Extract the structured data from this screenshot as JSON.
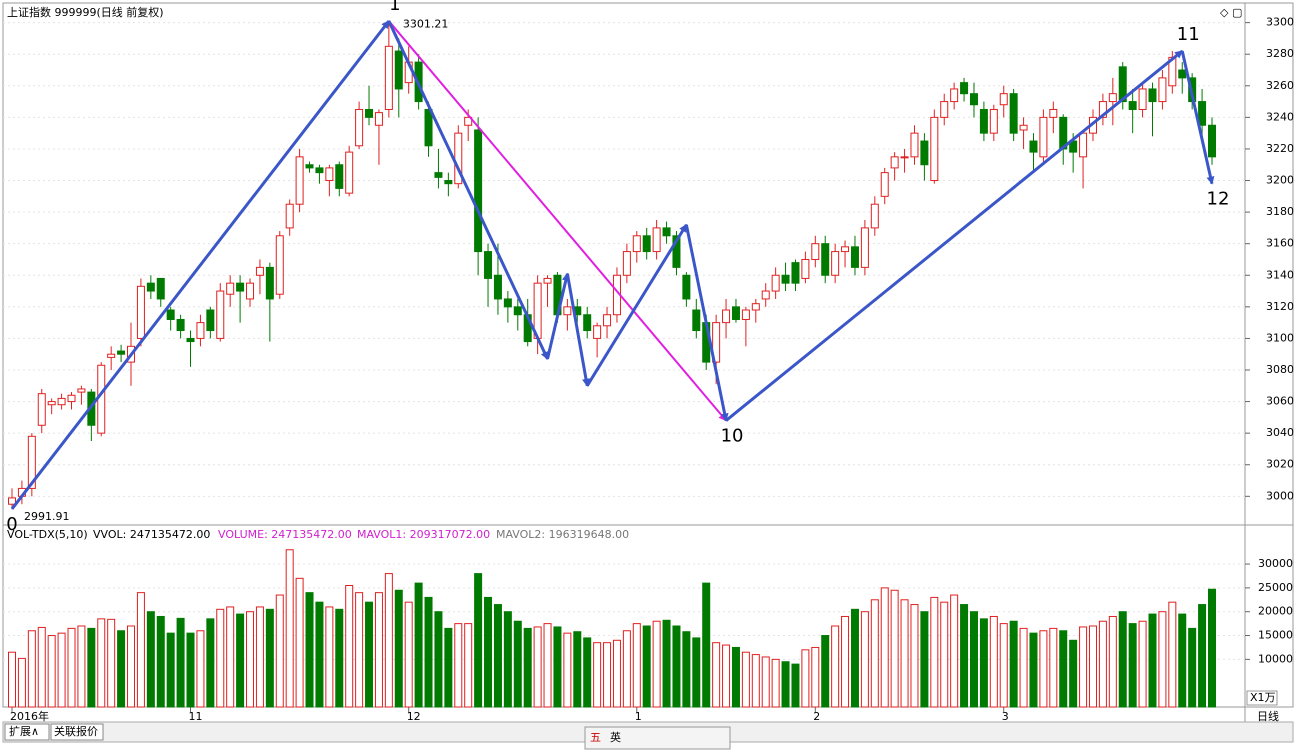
{
  "chart_data": {
    "type": "candlestick",
    "title": "上证指数 999999(日线 前复权)",
    "ylim": [
      2985,
      3308
    ],
    "yticks": [
      3000,
      3020,
      3040,
      3060,
      3080,
      3100,
      3120,
      3140,
      3160,
      3180,
      3200,
      3220,
      3240,
      3260,
      3280,
      3300
    ],
    "high_label": "3301.21",
    "low_label": "2991.91",
    "up_color": "#e02020",
    "down_color": "#007a00",
    "candles": [
      [
        2995,
        3005,
        2991.91,
        2999,
        11500
      ],
      [
        3000,
        3010,
        2995,
        3005,
        10200
      ],
      [
        3005,
        3040,
        3000,
        3038,
        16000
      ],
      [
        3045,
        3068,
        3040,
        3065,
        16700
      ],
      [
        3058,
        3062,
        3052,
        3060,
        15000
      ],
      [
        3058,
        3065,
        3055,
        3062,
        15500
      ],
      [
        3060,
        3066,
        3055,
        3064,
        16500
      ],
      [
        3066,
        3070,
        3058,
        3068,
        17000
      ],
      [
        3066,
        3068,
        3035,
        3045,
        16500
      ],
      [
        3040,
        3085,
        3038,
        3083,
        18500
      ],
      [
        3088,
        3095,
        3080,
        3090,
        18400
      ],
      [
        3092,
        3096,
        3085,
        3090,
        16000
      ],
      [
        3085,
        3110,
        3070,
        3095,
        17000
      ],
      [
        3100,
        3138,
        3095,
        3133,
        24000
      ],
      [
        3135,
        3140,
        3125,
        3130,
        20000
      ],
      [
        3138,
        3138,
        3120,
        3125,
        19000
      ],
      [
        3118,
        3120,
        3105,
        3112,
        15500
      ],
      [
        3112,
        3115,
        3100,
        3105,
        18600
      ],
      [
        3100,
        3105,
        3082,
        3098,
        15500
      ],
      [
        3100,
        3115,
        3095,
        3110,
        16000
      ],
      [
        3118,
        3120,
        3100,
        3105,
        18500
      ],
      [
        3100,
        3135,
        3098,
        3130,
        20500
      ],
      [
        3128,
        3140,
        3120,
        3135,
        21000
      ],
      [
        3135,
        3140,
        3110,
        3130,
        19500
      ],
      [
        3125,
        3138,
        3120,
        3135,
        20000
      ],
      [
        3140,
        3150,
        3128,
        3145,
        21000
      ],
      [
        3145,
        3148,
        3098,
        3125,
        20500
      ],
      [
        3128,
        3168,
        3125,
        3165,
        23500
      ],
      [
        3170,
        3188,
        3165,
        3185,
        33000
      ],
      [
        3185,
        3220,
        3180,
        3215,
        27000
      ],
      [
        3210,
        3212,
        3205,
        3208,
        24000
      ],
      [
        3208,
        3210,
        3198,
        3205,
        22000
      ],
      [
        3200,
        3210,
        3190,
        3208,
        21000
      ],
      [
        3210,
        3212,
        3190,
        3195,
        20500
      ],
      [
        3192,
        3222,
        3190,
        3218,
        25500
      ],
      [
        3222,
        3250,
        3220,
        3245,
        24000
      ],
      [
        3245,
        3260,
        3235,
        3240,
        22000
      ],
      [
        3235,
        3245,
        3210,
        3243,
        24000
      ],
      [
        3245,
        3301.21,
        3240,
        3285,
        28000
      ],
      [
        3282,
        3290,
        3240,
        3258,
        24500
      ],
      [
        3262,
        3285,
        3255,
        3275,
        22000
      ],
      [
        3275,
        3280,
        3245,
        3250,
        26000
      ],
      [
        3245,
        3250,
        3215,
        3222,
        23000
      ],
      [
        3205,
        3220,
        3195,
        3202,
        20000
      ],
      [
        3200,
        3205,
        3190,
        3198,
        16500
      ],
      [
        3198,
        3235,
        3195,
        3230,
        17500
      ],
      [
        3235,
        3245,
        3225,
        3240,
        17500
      ],
      [
        3232,
        3240,
        3140,
        3155,
        28000
      ],
      [
        3155,
        3160,
        3120,
        3138,
        23000
      ],
      [
        3140,
        3160,
        3115,
        3125,
        21500
      ],
      [
        3125,
        3130,
        3110,
        3120,
        20000
      ],
      [
        3120,
        3125,
        3105,
        3115,
        18000
      ],
      [
        3115,
        3125,
        3095,
        3098,
        16500
      ],
      [
        3100,
        3140,
        3090,
        3135,
        16800
      ],
      [
        3135,
        3140,
        3120,
        3138,
        17500
      ],
      [
        3140,
        3142,
        3110,
        3115,
        16800
      ],
      [
        3115,
        3125,
        3105,
        3120,
        15500
      ],
      [
        3120,
        3125,
        3110,
        3115,
        15800
      ],
      [
        3115,
        3120,
        3100,
        3105,
        14500
      ],
      [
        3100,
        3110,
        3088,
        3108,
        13500
      ],
      [
        3108,
        3120,
        3100,
        3115,
        13500
      ],
      [
        3115,
        3145,
        3110,
        3140,
        14000
      ],
      [
        3140,
        3160,
        3135,
        3155,
        16000
      ],
      [
        3155,
        3168,
        3148,
        3165,
        17500
      ],
      [
        3165,
        3170,
        3150,
        3155,
        17000
      ],
      [
        3155,
        3175,
        3150,
        3170,
        18000
      ],
      [
        3170,
        3174,
        3160,
        3165,
        18200
      ],
      [
        3165,
        3168,
        3140,
        3145,
        17000
      ],
      [
        3140,
        3142,
        3120,
        3125,
        15800
      ],
      [
        3118,
        3125,
        3100,
        3105,
        14500
      ],
      [
        3110,
        3115,
        3080,
        3085,
        26000
      ],
      [
        3085,
        3115,
        3071,
        3110,
        13500
      ],
      [
        3110,
        3125,
        3100,
        3118,
        13000
      ],
      [
        3120,
        3125,
        3110,
        3112,
        12500
      ],
      [
        3112,
        3120,
        3095,
        3118,
        11500
      ],
      [
        3118,
        3125,
        3110,
        3122,
        11000
      ],
      [
        3125,
        3135,
        3120,
        3130,
        10500
      ],
      [
        3130,
        3145,
        3125,
        3140,
        10000
      ],
      [
        3140,
        3148,
        3130,
        3135,
        9500
      ],
      [
        3148,
        3150,
        3130,
        3135,
        9000
      ],
      [
        3138,
        3155,
        3135,
        3150,
        12000
      ],
      [
        3150,
        3165,
        3145,
        3160,
        12500
      ],
      [
        3160,
        3165,
        3135,
        3140,
        15000
      ],
      [
        3140,
        3160,
        3135,
        3155,
        17000
      ],
      [
        3155,
        3162,
        3145,
        3158,
        19000
      ],
      [
        3158,
        3165,
        3140,
        3145,
        20500
      ],
      [
        3145,
        3175,
        3140,
        3170,
        20000
      ],
      [
        3170,
        3190,
        3165,
        3185,
        22500
      ],
      [
        3190,
        3208,
        3185,
        3205,
        25000
      ],
      [
        3208,
        3218,
        3200,
        3215,
        24500
      ],
      [
        3215,
        3220,
        3205,
        3215,
        22500
      ],
      [
        3215,
        3235,
        3210,
        3230,
        21500
      ],
      [
        3225,
        3230,
        3200,
        3210,
        20000
      ],
      [
        3200,
        3245,
        3198,
        3240,
        23000
      ],
      [
        3240,
        3255,
        3235,
        3250,
        22000
      ],
      [
        3250,
        3262,
        3245,
        3258,
        23500
      ],
      [
        3262,
        3265,
        3250,
        3255,
        21500
      ],
      [
        3255,
        3262,
        3240,
        3248,
        20000
      ],
      [
        3245,
        3250,
        3225,
        3230,
        18500
      ],
      [
        3230,
        3248,
        3225,
        3245,
        19000
      ],
      [
        3248,
        3260,
        3240,
        3255,
        17500
      ],
      [
        3255,
        3258,
        3225,
        3230,
        18000
      ],
      [
        3232,
        3240,
        3220,
        3235,
        16500
      ],
      [
        3225,
        3230,
        3205,
        3218,
        15500
      ],
      [
        3215,
        3245,
        3210,
        3240,
        16000
      ],
      [
        3240,
        3250,
        3230,
        3245,
        16500
      ],
      [
        3240,
        3242,
        3210,
        3220,
        16000
      ],
      [
        3225,
        3230,
        3205,
        3218,
        14000
      ],
      [
        3215,
        3232,
        3195,
        3230,
        16800
      ],
      [
        3230,
        3245,
        3225,
        3240,
        17000
      ],
      [
        3240,
        3255,
        3235,
        3250,
        18000
      ],
      [
        3250,
        3265,
        3235,
        3255,
        19000
      ],
      [
        3272,
        3275,
        3245,
        3250,
        20000
      ],
      [
        3250,
        3258,
        3230,
        3245,
        17500
      ],
      [
        3245,
        3262,
        3240,
        3258,
        18000
      ],
      [
        3258,
        3262,
        3228,
        3250,
        19500
      ],
      [
        3250,
        3270,
        3245,
        3265,
        20000
      ],
      [
        3260,
        3282,
        3255,
        3278,
        22000
      ],
      [
        3270,
        3275,
        3255,
        3265,
        19500
      ],
      [
        3265,
        3268,
        3245,
        3250,
        16500
      ],
      [
        3250,
        3258,
        3225,
        3235,
        21500
      ],
      [
        3235,
        3240,
        3210,
        3215,
        24714
      ]
    ],
    "waves": [
      {
        "label": "0",
        "index": 0,
        "price": 2992
      },
      {
        "label": "1",
        "index": 38,
        "price": 3301
      },
      {
        "label": null,
        "index": 54,
        "price": 3087
      },
      {
        "label": null,
        "index": 56,
        "price": 3141
      },
      {
        "label": null,
        "index": 58,
        "price": 3070
      },
      {
        "label": null,
        "index": 68,
        "price": 3172
      },
      {
        "label": "10",
        "index": 72,
        "price": 3048
      },
      {
        "label": "11",
        "index": 118,
        "price": 3282
      },
      {
        "label": "12",
        "index": 121,
        "price": 3198
      }
    ],
    "wave_color": "#3a56c8",
    "trend_color": "#e020e0",
    "trend_from": 1,
    "trend_to": 6,
    "x_labels": [
      {
        "index": 0,
        "label": "2016年"
      },
      {
        "index": 18,
        "label": "11"
      },
      {
        "index": 40,
        "label": "12"
      },
      {
        "index": 63,
        "label": "1"
      },
      {
        "index": 81,
        "label": "2"
      },
      {
        "index": 100,
        "label": "3"
      }
    ],
    "volume": {
      "header": "VOL-TDX(5,10)",
      "vvol": "VVOL: 247135472.00",
      "volume": "VOLUME: 247135472.00",
      "mavol1": "MAVOL1: 209317072.00",
      "mavol2": "MAVOL2: 196319648.00",
      "unit": "X1万",
      "ylim": [
        0,
        34000
      ],
      "yticks": [
        10000,
        15000,
        20000,
        25000,
        30000
      ]
    },
    "period": "日线",
    "tabs": [
      "扩展∧",
      "关联报价"
    ],
    "ime": [
      "五",
      "英"
    ]
  }
}
